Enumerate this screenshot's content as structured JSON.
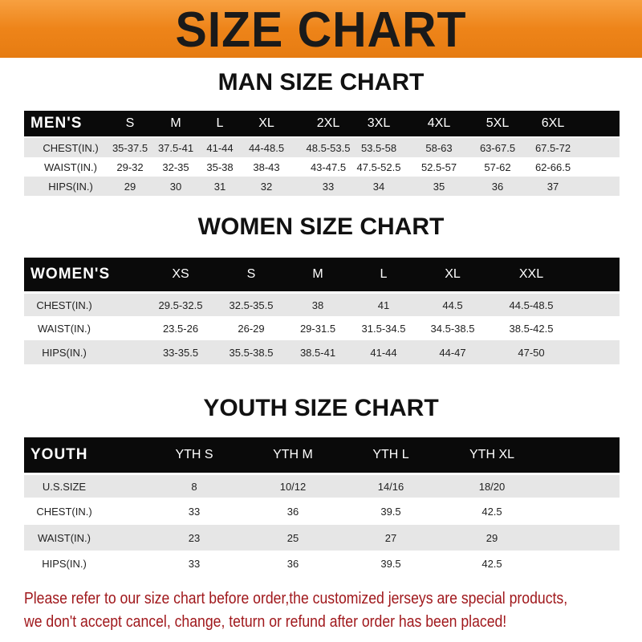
{
  "title": "SIZE CHART",
  "colors": {
    "banner": "#ee8419",
    "header_row": "#0a0a0a",
    "stripe": "#e6e6e6",
    "note": "#a0181c"
  },
  "tables": [
    {
      "title": "MAN SIZE CHART",
      "header": [
        "MEN'S",
        "S",
        "M",
        "L",
        "XL",
        "2XL",
        "3XL",
        "4XL",
        "5XL",
        "6XL"
      ],
      "rows": [
        [
          "CHEST(IN.)",
          "35-37.5",
          "37.5-41",
          "41-44",
          "44-48.5",
          "48.5-53.5",
          "53.5-58",
          "58-63",
          "63-67.5",
          "67.5-72"
        ],
        [
          "WAIST(IN.)",
          "29-32",
          "32-35",
          "35-38",
          "38-43",
          "43-47.5",
          "47.5-52.5",
          "52.5-57",
          "57-62",
          "62-66.5"
        ],
        [
          "HIPS(IN.)",
          "29",
          "30",
          "31",
          "32",
          "33",
          "34",
          "35",
          "36",
          "37"
        ]
      ]
    },
    {
      "title": "WOMEN SIZE CHART",
      "header": [
        "WOMEN'S",
        "XS",
        "S",
        "M",
        "L",
        "XL",
        "XXL"
      ],
      "rows": [
        [
          "CHEST(IN.)",
          "29.5-32.5",
          "32.5-35.5",
          "38",
          "41",
          "44.5",
          "44.5-48.5"
        ],
        [
          "WAIST(IN.)",
          "23.5-26",
          "26-29",
          "29-31.5",
          "31.5-34.5",
          "34.5-38.5",
          "38.5-42.5"
        ],
        [
          "HIPS(IN.)",
          "33-35.5",
          "35.5-38.5",
          "38.5-41",
          "41-44",
          "44-47",
          "47-50"
        ]
      ]
    },
    {
      "title": "YOUTH SIZE CHART",
      "header": [
        "YOUTH",
        "YTH S",
        "YTH M",
        "YTH L",
        "YTH XL"
      ],
      "rows": [
        [
          "U.S.SIZE",
          "8",
          "10/12",
          "14/16",
          "18/20"
        ],
        [
          "CHEST(IN.)",
          "33",
          "36",
          "39.5",
          "42.5"
        ],
        [
          "WAIST(IN.)",
          "23",
          "25",
          "27",
          "29"
        ],
        [
          "HIPS(IN.)",
          "33",
          "36",
          "39.5",
          "42.5"
        ]
      ]
    }
  ],
  "note": {
    "line1": "Please refer to our size chart before order,the customized jerseys are special products,",
    "line2": "we don't accept cancel, change, teturn or refund after order has been placed!"
  }
}
